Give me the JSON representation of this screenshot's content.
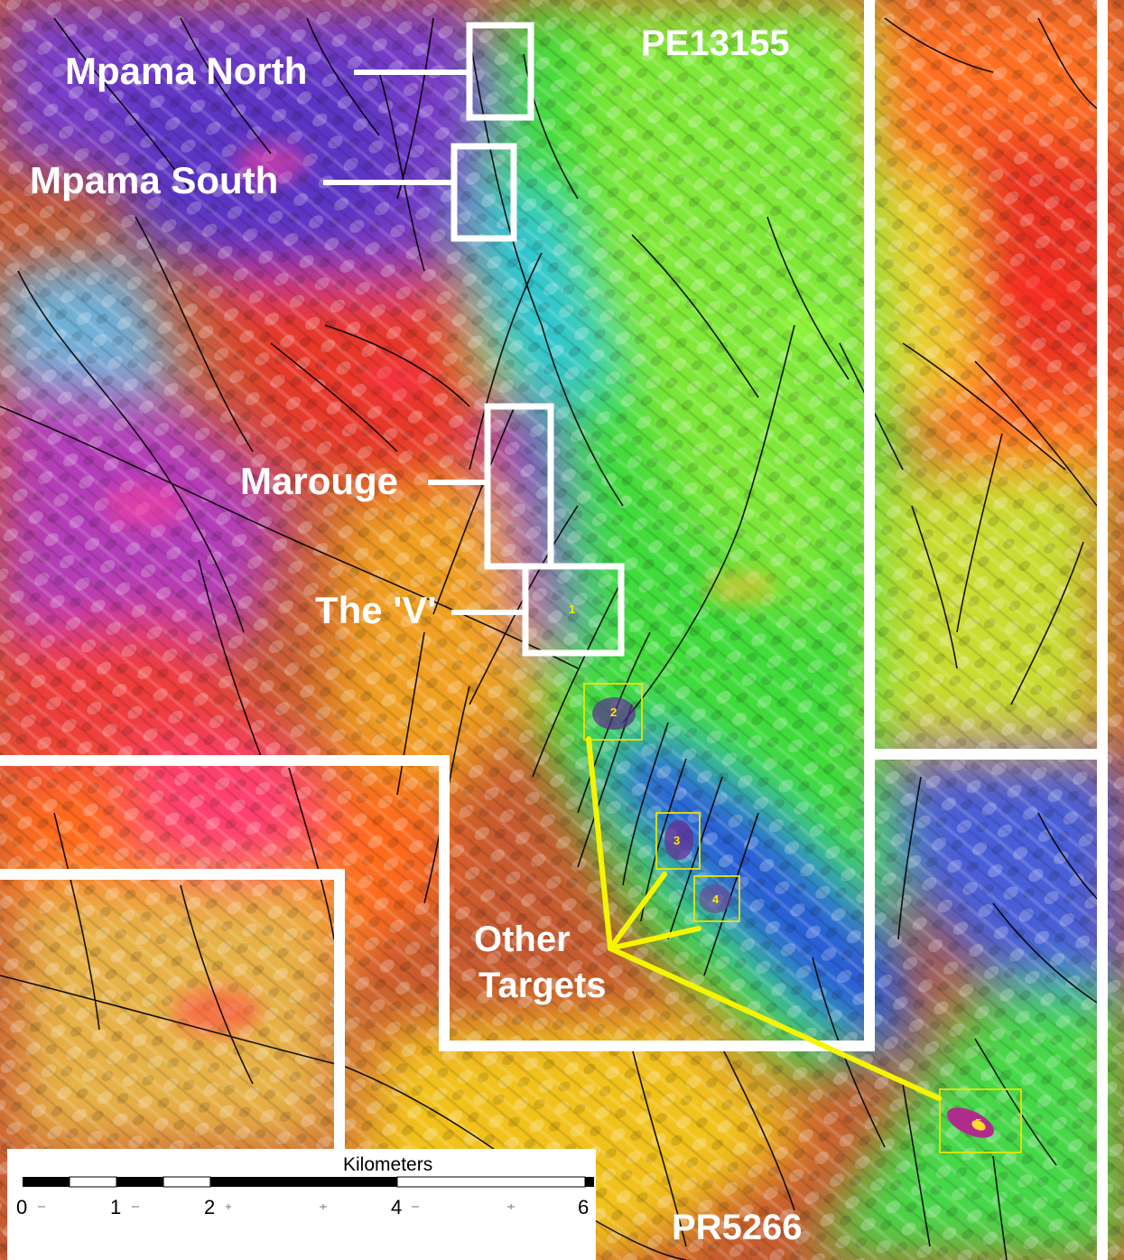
{
  "permits": {
    "north": "PE13155",
    "south": "PR5266"
  },
  "prospects": [
    {
      "id": "mpama-north",
      "label": "Mpama North"
    },
    {
      "id": "mpama-south",
      "label": "Mpama South"
    },
    {
      "id": "marouge",
      "label": "Marouge"
    },
    {
      "id": "the-v",
      "label": "The 'V'"
    }
  ],
  "other_targets": {
    "label_line1": "Other",
    "label_line2": "Targets",
    "numbers": [
      "1",
      "2",
      "3",
      "4",
      "5"
    ]
  },
  "scale_bar": {
    "title": "Kilometers",
    "ticks": [
      "0",
      "1",
      "2",
      "4",
      "6"
    ]
  },
  "colors": {
    "prospect_box": "#ffffff",
    "target_box": "#e6e600",
    "arrow": "#f5f500",
    "faults": "#000000"
  }
}
